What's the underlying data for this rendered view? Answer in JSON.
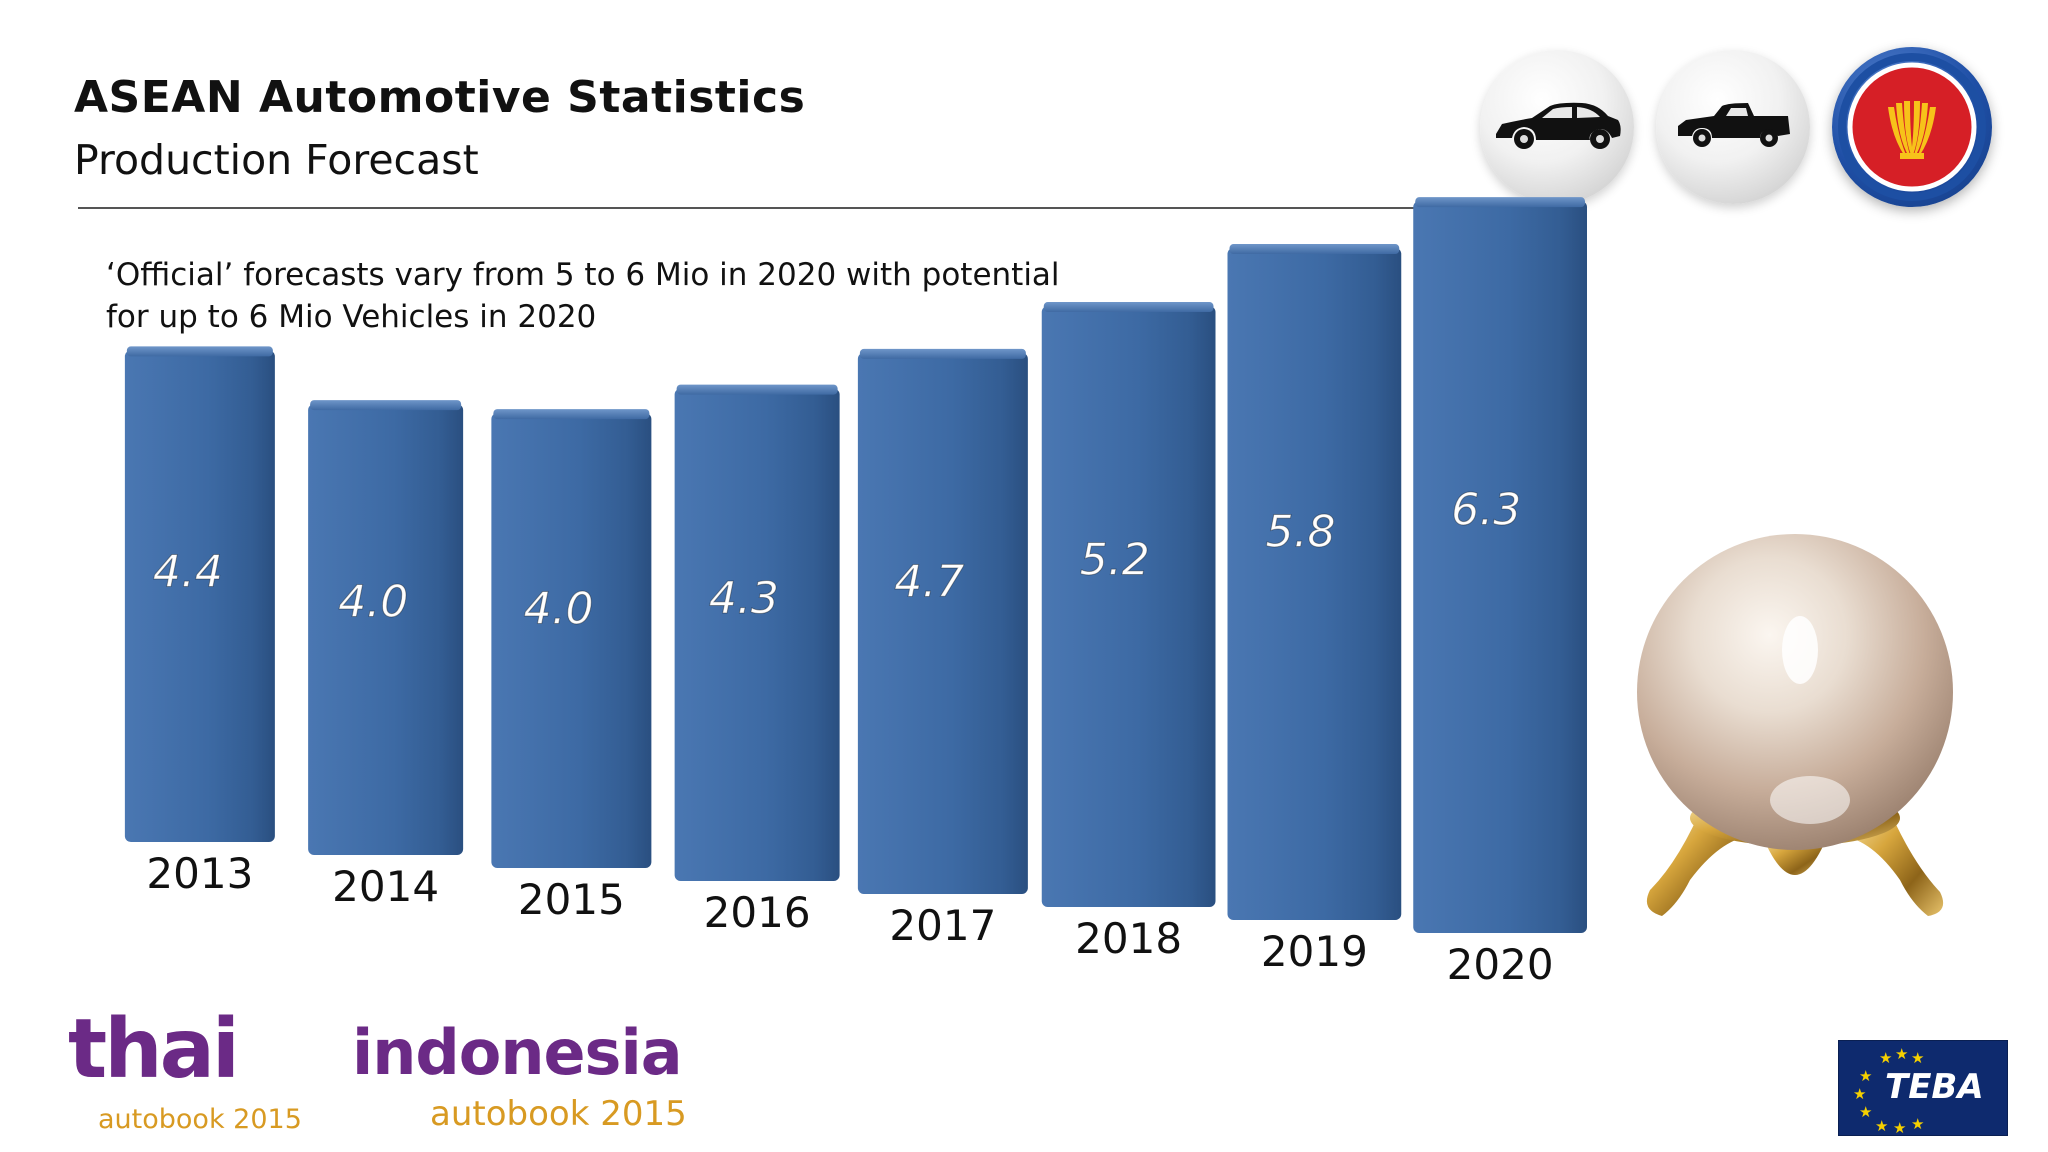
{
  "header": {
    "title": "ASEAN Automotive Statistics",
    "subtitle": "Production Forecast"
  },
  "note": {
    "line1": "‘Official’ forecasts vary from 5 to 6 Mio in 2020 with potential",
    "line2": "for up to 6 Mio Vehicles in 2020"
  },
  "icons": {
    "car": "car-icon",
    "pickup": "pickup-truck-icon",
    "asean": "asean-emblem-icon",
    "crystal_ball": "crystal-ball-icon"
  },
  "colors": {
    "bar": "#3f6aa3",
    "bar_dark": "#2c4f80",
    "bar_light": "#5d86bd",
    "brand_purple": "#6b2a86",
    "brand_gold": "#d89a22",
    "teba_blue": "#0e2a6e"
  },
  "chart_data": {
    "type": "bar",
    "title": "",
    "xlabel": "",
    "ylabel": "",
    "categories": [
      "2013",
      "2014",
      "2015",
      "2016",
      "2017",
      "2018",
      "2019",
      "2020"
    ],
    "values": [
      4.4,
      4.0,
      4.0,
      4.3,
      4.7,
      5.2,
      5.8,
      6.3
    ],
    "value_labels": [
      "4.4",
      "4.0",
      "4.0",
      "4.3",
      "4.7",
      "5.2",
      "5.8",
      "6.3"
    ],
    "grid": false,
    "legend": "none"
  },
  "logos": {
    "thai_big": "thai",
    "thai_small": "autobook 2015",
    "indo_big": "indonesia",
    "indo_small": "autobook 2015",
    "teba": "TEBA"
  }
}
